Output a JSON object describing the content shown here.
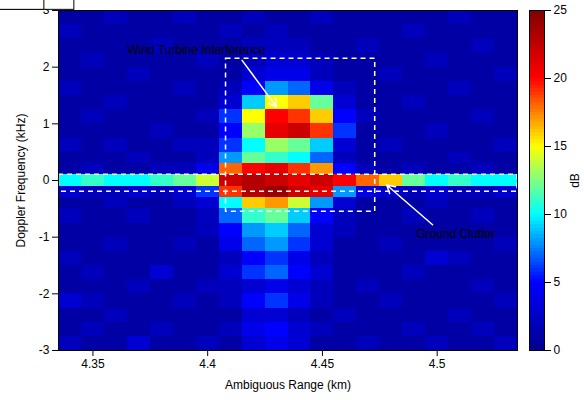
{
  "chart_data": {
    "type": "heatmap",
    "x_label": "Ambiguous Range (km)",
    "y_label": "Doppler Frequency (kHz)",
    "x_edges": [
      4.335,
      4.345,
      4.355,
      4.365,
      4.375,
      4.385,
      4.395,
      4.405,
      4.415,
      4.425,
      4.435,
      4.445,
      4.455,
      4.465,
      4.475,
      4.485,
      4.495,
      4.505,
      4.515,
      4.525,
      4.535
    ],
    "y_edges": [
      -3,
      -2.75,
      -2.5,
      -2.25,
      -2,
      -1.75,
      -1.5,
      -1.25,
      -1,
      -0.75,
      -0.5,
      -0.3,
      -0.1,
      0.1,
      0.3,
      0.5,
      0.75,
      1,
      1.25,
      1.5,
      1.75,
      2,
      2.25,
      2.5,
      2.75,
      3
    ],
    "values": [
      [
        2,
        1,
        1,
        3,
        1,
        1,
        2,
        1,
        3,
        4,
        3,
        1,
        1,
        2,
        1,
        1,
        2,
        1,
        1,
        2
      ],
      [
        1,
        2,
        1,
        1,
        2,
        1,
        1,
        2,
        4,
        5,
        3,
        2,
        1,
        1,
        1,
        2,
        1,
        1,
        2,
        1
      ],
      [
        1,
        1,
        2,
        1,
        1,
        1,
        1,
        1,
        3,
        3,
        2,
        1,
        2,
        1,
        1,
        1,
        1,
        2,
        1,
        1
      ],
      [
        3,
        2,
        1,
        1,
        1,
        2,
        1,
        2,
        5,
        6,
        4,
        2,
        1,
        1,
        2,
        1,
        1,
        1,
        1,
        2
      ],
      [
        1,
        1,
        1,
        2,
        1,
        1,
        2,
        2,
        3,
        4,
        3,
        2,
        1,
        2,
        1,
        1,
        1,
        1,
        2,
        1
      ],
      [
        1,
        2,
        1,
        1,
        3,
        1,
        1,
        3,
        6,
        7,
        5,
        3,
        1,
        1,
        1,
        2,
        1,
        1,
        1,
        1
      ],
      [
        2,
        1,
        1,
        1,
        1,
        1,
        1,
        2,
        5,
        6,
        4,
        2,
        1,
        1,
        1,
        1,
        3,
        2,
        1,
        1
      ],
      [
        1,
        1,
        2,
        1,
        1,
        2,
        1,
        4,
        7,
        8,
        6,
        3,
        1,
        1,
        2,
        1,
        1,
        1,
        1,
        2
      ],
      [
        1,
        1,
        1,
        1,
        1,
        1,
        2,
        5,
        8,
        9,
        7,
        3,
        2,
        1,
        1,
        1,
        1,
        1,
        1,
        1
      ],
      [
        2,
        1,
        1,
        2,
        1,
        1,
        2,
        7,
        11,
        12,
        9,
        5,
        2,
        1,
        1,
        2,
        1,
        1,
        2,
        1
      ],
      [
        1,
        1,
        2,
        1,
        1,
        2,
        3,
        10,
        16,
        17,
        14,
        8,
        3,
        1,
        1,
        1,
        2,
        1,
        1,
        1
      ],
      [
        3,
        2,
        2,
        3,
        2,
        3,
        6,
        19,
        23,
        24,
        22,
        21,
        8,
        4,
        3,
        2,
        3,
        2,
        2,
        3
      ],
      [
        10,
        11,
        10,
        10,
        11,
        12,
        14,
        22,
        23,
        22,
        21,
        22,
        20,
        18,
        16,
        12,
        10,
        11,
        10,
        10
      ],
      [
        1,
        2,
        1,
        1,
        2,
        2,
        4,
        18,
        20,
        21,
        19,
        17,
        5,
        2,
        1,
        2,
        1,
        1,
        2,
        1
      ],
      [
        1,
        1,
        1,
        2,
        1,
        1,
        2,
        8,
        12,
        11,
        10,
        7,
        2,
        1,
        1,
        1,
        1,
        2,
        1,
        1
      ],
      [
        2,
        1,
        2,
        1,
        1,
        2,
        2,
        6,
        10,
        13,
        12,
        9,
        3,
        1,
        2,
        1,
        1,
        1,
        1,
        2
      ],
      [
        1,
        1,
        1,
        1,
        2,
        1,
        1,
        5,
        13,
        21,
        22,
        19,
        6,
        1,
        1,
        1,
        2,
        1,
        1,
        1
      ],
      [
        1,
        2,
        1,
        1,
        1,
        1,
        2,
        6,
        15,
        20,
        19,
        16,
        5,
        2,
        1,
        1,
        1,
        1,
        2,
        1
      ],
      [
        1,
        1,
        2,
        1,
        1,
        1,
        1,
        3,
        9,
        15,
        16,
        12,
        3,
        1,
        1,
        2,
        1,
        1,
        1,
        1
      ],
      [
        2,
        1,
        1,
        1,
        1,
        2,
        1,
        2,
        5,
        8,
        7,
        4,
        2,
        1,
        1,
        1,
        1,
        2,
        1,
        1
      ],
      [
        1,
        1,
        1,
        2,
        1,
        1,
        1,
        1,
        3,
        4,
        4,
        2,
        1,
        1,
        2,
        1,
        1,
        1,
        1,
        2
      ],
      [
        1,
        2,
        1,
        1,
        1,
        1,
        2,
        1,
        2,
        3,
        3,
        2,
        1,
        1,
        1,
        1,
        2,
        1,
        1,
        1
      ],
      [
        1,
        1,
        1,
        1,
        2,
        1,
        1,
        1,
        2,
        2,
        2,
        1,
        1,
        2,
        1,
        1,
        1,
        1,
        2,
        1
      ],
      [
        2,
        1,
        1,
        1,
        1,
        1,
        1,
        2,
        1,
        2,
        1,
        1,
        1,
        1,
        1,
        2,
        1,
        1,
        1,
        1
      ],
      [
        1,
        1,
        2,
        1,
        1,
        2,
        1,
        1,
        2,
        1,
        1,
        2,
        1,
        1,
        1,
        1,
        1,
        2,
        1,
        1
      ]
    ],
    "xlim": [
      4.335,
      4.535
    ],
    "xticks": [
      4.35,
      4.4,
      4.45,
      4.5
    ],
    "ylim": [
      -3,
      3
    ],
    "yticks": [
      -3,
      -2,
      -1,
      0,
      1,
      2,
      3
    ],
    "colorbar": {
      "label": "dB",
      "range": [
        0,
        25
      ],
      "ticks": [
        0,
        5,
        10,
        15,
        20,
        25
      ]
    },
    "annotations": [
      {
        "text": "Wind Turbine Interference",
        "x": 4.395,
        "y": 2.3,
        "arrow_from": [
          4.415,
          2.12
        ],
        "arrow_to": [
          4.43,
          1.3
        ],
        "box": {
          "x": [
            4.408,
            4.473
          ],
          "y": [
            -0.55,
            2.15
          ]
        }
      },
      {
        "text": "Ground Clutter",
        "x": 4.508,
        "y": -0.95,
        "arrow_from": [
          4.498,
          -0.78
        ],
        "arrow_to": [
          4.478,
          -0.08
        ],
        "box": {
          "x": [
            4.335,
            4.535
          ],
          "y": [
            -0.2,
            0.1
          ]
        }
      }
    ]
  }
}
